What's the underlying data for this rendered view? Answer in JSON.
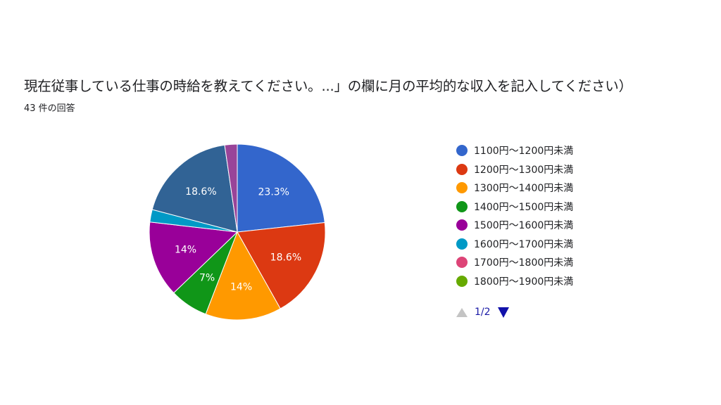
{
  "header": {
    "title": "現在従事している仕事の時給を教えてください。...」の欄に月の平均的な収入を記入してください）",
    "response_count": "43 件の回答"
  },
  "chart_data": {
    "type": "pie",
    "start_angle_deg": 90,
    "direction": "clockwise",
    "slices": [
      {
        "label": "1100円〜1200円未満",
        "value": 23.3,
        "data_label": "23.3%",
        "color": "#3366cc"
      },
      {
        "label": "1200円〜1300円未満",
        "value": 18.6,
        "data_label": "18.6%",
        "color": "#dc3912"
      },
      {
        "label": "1300円〜1400円未満",
        "value": 14.0,
        "data_label": "14%",
        "color": "#ff9900"
      },
      {
        "label": "1400円〜1500円未満",
        "value": 7.0,
        "data_label": "7%",
        "color": "#109618"
      },
      {
        "label": "1500円〜1600円未満",
        "value": 14.0,
        "data_label": "14%",
        "color": "#990099"
      },
      {
        "label": "1600円〜1700円未満",
        "value": 2.3,
        "data_label": "",
        "color": "#0099c6"
      },
      {
        "label": "",
        "value": 18.6,
        "data_label": "18.6%",
        "color": "#316395"
      },
      {
        "label": "",
        "value": 2.3,
        "data_label": "",
        "color": "#994499"
      }
    ],
    "legend": {
      "position": "right",
      "entries": [
        {
          "label": "1100円〜1200円未満",
          "color": "#3366cc"
        },
        {
          "label": "1200円〜1300円未満",
          "color": "#dc3912"
        },
        {
          "label": "1300円〜1400円未満",
          "color": "#ff9900"
        },
        {
          "label": "1400円〜1500円未満",
          "color": "#109618"
        },
        {
          "label": "1500円〜1600円未満",
          "color": "#990099"
        },
        {
          "label": "1600円〜1700円未満",
          "color": "#0099c6"
        },
        {
          "label": "1700円〜1800円未満",
          "color": "#dd4477"
        },
        {
          "label": "1800円〜1900円未満",
          "color": "#66aa00"
        }
      ]
    }
  },
  "pager": {
    "page_indicator": "1/2",
    "prev_icon": "triangle-up-icon",
    "next_icon": "triangle-down-icon",
    "prev_color": "#c4c4c4",
    "next_color": "#1111aa"
  }
}
